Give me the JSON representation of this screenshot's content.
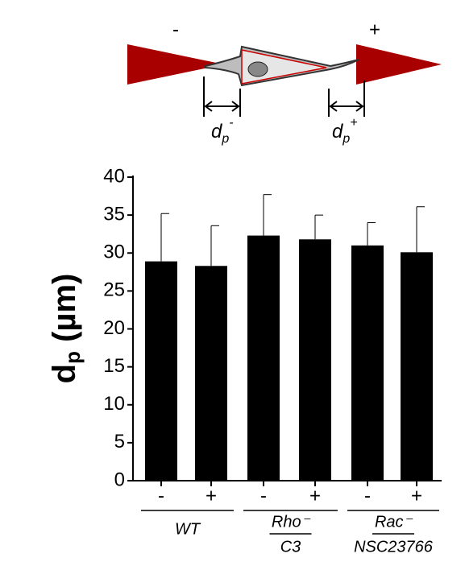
{
  "diagram": {
    "left_sign": "-",
    "right_sign": "+",
    "left_label": {
      "d": "d",
      "sub": "p",
      "sup": "-"
    },
    "right_label": {
      "d": "d",
      "sub": "p",
      "sup": "+"
    }
  },
  "chart_data": {
    "type": "bar",
    "y_label": {
      "main": "d",
      "sub": "p",
      "rest": " (µm)"
    },
    "categories": [
      "-",
      "+",
      "-",
      "+",
      "-",
      "+"
    ],
    "groups": [
      {
        "top": "WT",
        "span": [
          0,
          1
        ]
      },
      {
        "top": "Rho⁻",
        "bottom": "C3",
        "span": [
          2,
          3
        ]
      },
      {
        "top": "Rac⁻",
        "bottom": "NSC23766",
        "span": [
          4,
          5
        ]
      }
    ],
    "series": [
      {
        "color": "#000000",
        "values": [
          28.9,
          28.3,
          32.3,
          31.8,
          31.0,
          30.1
        ],
        "errors": [
          6.3,
          5.3,
          5.4,
          3.2,
          3.0,
          6.0
        ]
      }
    ],
    "ylim": [
      0,
      40
    ],
    "yticks": [
      0,
      5,
      10,
      15,
      20,
      25,
      30,
      35,
      40
    ],
    "grid": false
  }
}
